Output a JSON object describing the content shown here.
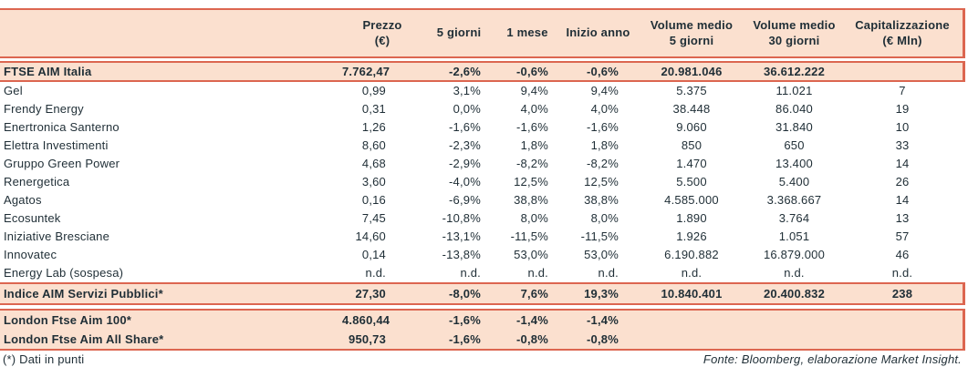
{
  "colors": {
    "accent_border": "#dc6650",
    "band_background": "#fbe0cf",
    "text": "#1f2e36"
  },
  "table": {
    "columns": [
      {
        "key": "name",
        "label": ""
      },
      {
        "key": "prezzo",
        "label": "Prezzo\n(€)"
      },
      {
        "key": "pct-5-giorni",
        "label": "5 giorni"
      },
      {
        "key": "pct-1-mese",
        "label": "1 mese"
      },
      {
        "key": "pct-inizio-anno",
        "label": "Inizio anno"
      },
      {
        "key": "vol-medio-5g",
        "label": "Volume medio\n5 giorni"
      },
      {
        "key": "vol-medio-30g",
        "label": "Volume medio\n30 giorni"
      },
      {
        "key": "capitalizzazione",
        "label": "Capitalizzazione\n(€ Mln)"
      }
    ],
    "sections": [
      {
        "name": "ftse-aim-italia-section",
        "type": "band ftse",
        "rows": [
          [
            "FTSE AIM Italia",
            "7.762,47",
            "-2,6%",
            "-0,6%",
            "-0,6%",
            "20.981.046",
            "36.612.222",
            ""
          ]
        ]
      },
      {
        "name": "constituents-section",
        "type": "plain",
        "rows": [
          [
            "Gel",
            "0,99",
            "3,1%",
            "9,4%",
            "9,4%",
            "5.375",
            "11.021",
            "7"
          ],
          [
            "Frendy Energy",
            "0,31",
            "0,0%",
            "4,0%",
            "4,0%",
            "38.448",
            "86.040",
            "19"
          ],
          [
            "Enertronica Santerno",
            "1,26",
            "-1,6%",
            "-1,6%",
            "-1,6%",
            "9.060",
            "31.840",
            "10"
          ],
          [
            "Elettra Investimenti",
            "8,60",
            "-2,3%",
            "1,8%",
            "1,8%",
            "850",
            "650",
            "33"
          ],
          [
            "Gruppo Green Power",
            "4,68",
            "-2,9%",
            "-8,2%",
            "-8,2%",
            "1.470",
            "13.400",
            "14"
          ],
          [
            "Renergetica",
            "3,60",
            "-4,0%",
            "12,5%",
            "12,5%",
            "5.500",
            "5.400",
            "26"
          ],
          [
            "Agatos",
            "0,16",
            "-6,9%",
            "38,8%",
            "38,8%",
            "4.585.000",
            "3.368.667",
            "14"
          ],
          [
            "Ecosuntek",
            "7,45",
            "-10,8%",
            "8,0%",
            "8,0%",
            "1.890",
            "3.764",
            "13"
          ],
          [
            "Iniziative Bresciane",
            "14,60",
            "-13,1%",
            "-11,5%",
            "-11,5%",
            "1.926",
            "1.051",
            "57"
          ],
          [
            "Innovatec",
            "0,14",
            "-13,8%",
            "53,0%",
            "53,0%",
            "6.190.882",
            "16.879.000",
            "46"
          ],
          [
            "Energy Lab (sospesa)",
            "n.d.",
            "n.d.",
            "n.d.",
            "n.d.",
            "n.d.",
            "n.d.",
            "n.d."
          ]
        ]
      },
      {
        "name": "indice-aim-servizi-pubblici-section",
        "type": "band indice",
        "rows": [
          [
            "Indice AIM Servizi Pubblici*",
            "27,30",
            "-8,0%",
            "7,6%",
            "19,3%",
            "10.840.401",
            "20.400.832",
            "238"
          ]
        ]
      },
      {
        "name": "london-ftse-section",
        "type": "band london",
        "rows": [
          [
            "London Ftse Aim 100*",
            "4.860,44",
            "-1,6%",
            "-1,4%",
            "-1,4%",
            "",
            "",
            ""
          ],
          [
            "London Ftse Aim All Share*",
            "950,73",
            "-1,6%",
            "-0,8%",
            "-0,8%",
            "",
            "",
            ""
          ]
        ]
      }
    ]
  },
  "footer": {
    "note": "(*) Dati in punti",
    "source": "Fonte: Bloomberg, elaborazione Market Insight."
  }
}
